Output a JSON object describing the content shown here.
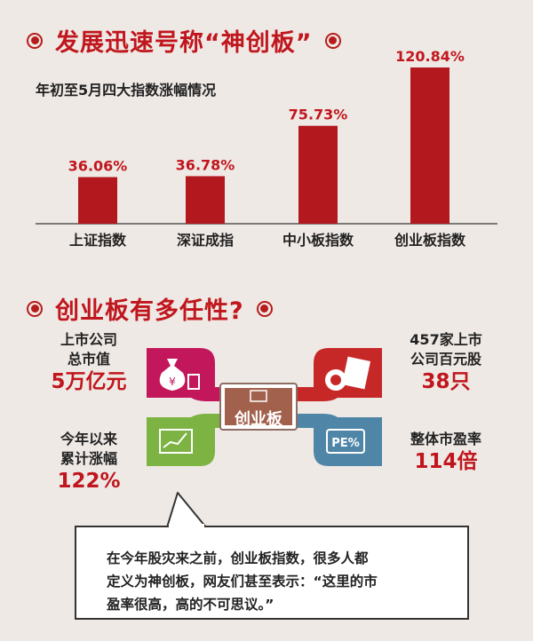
{
  "section1": {
    "title": "发展迅速号称“神创板”"
  },
  "chart_data": {
    "type": "bar",
    "title": "年初至5月四大指数涨幅情况",
    "categories": [
      "上证指数",
      "深证成指",
      "中小板指数",
      "创业板指数"
    ],
    "values": [
      36.06,
      36.78,
      75.73,
      120.84
    ],
    "value_labels": [
      "36.06%",
      "36.78%",
      "75.73%",
      "120.84%"
    ],
    "ylim": [
      0,
      130
    ],
    "bar_color": "#b3181e",
    "grid": false
  },
  "section2": {
    "title": "创业板有多任性?",
    "center_label": "创业板",
    "stats": [
      {
        "label1": "上市公司",
        "label2": "总市值",
        "value": "5万亿元"
      },
      {
        "label1": "457家上市",
        "label2": "公司百元股",
        "value": "38只"
      },
      {
        "label1": "今年以来",
        "label2": "累计涨幅",
        "value": "122%"
      },
      {
        "label1": "整体市盈率",
        "label2": "",
        "value": "114倍"
      }
    ],
    "icons": [
      {
        "name": "money-bag-icon",
        "symbol": "¥",
        "color": "#c2185b"
      },
      {
        "name": "hundred-yuan-icon",
        "symbol": "",
        "color": "#c62828"
      },
      {
        "name": "rising-chart-icon",
        "symbol": "",
        "color": "#7cb342"
      },
      {
        "name": "pe-ratio-icon",
        "symbol": "PE%",
        "color": "#4f86a8"
      }
    ]
  },
  "quote": {
    "line1": "在今年股灾来之前，创业板指数，很多人都",
    "line2": "定义为神创板，网友们甚至表示：“这里的市",
    "line3": "盈率很高，高的不可思议。”"
  }
}
